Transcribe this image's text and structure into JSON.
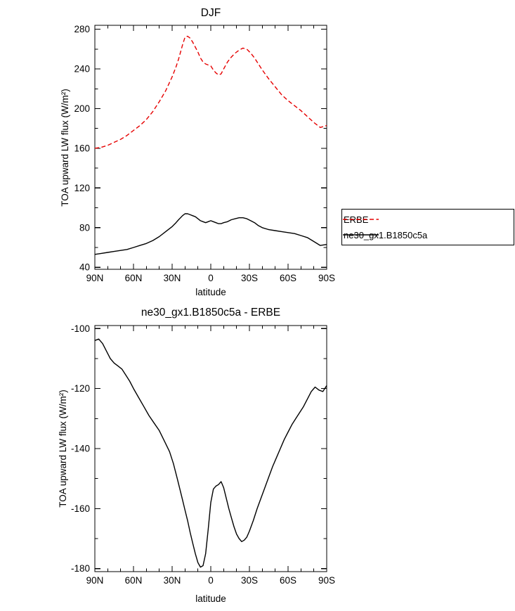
{
  "figure": {
    "background_color": "#ffffff",
    "frame_color": "#000000"
  },
  "legend": {
    "position": "right",
    "border": true,
    "entries": [
      "ERBE",
      "ne30_gx1.B1850c5a"
    ]
  },
  "chart_data": [
    {
      "type": "line",
      "title": "DJF",
      "xlabel": "latitude",
      "ylabel": "TOA upward LW flux (W/m²)",
      "xlim": [
        90,
        -90
      ],
      "ylim": [
        40,
        280
      ],
      "grid": false,
      "xticks": [
        90,
        60,
        30,
        0,
        -30,
        -60,
        -90
      ],
      "xticklabels": [
        "90N",
        "60N",
        "30N",
        "0",
        "30S",
        "60S",
        "90S"
      ],
      "yticks": [
        40,
        80,
        120,
        160,
        200,
        240,
        280
      ],
      "legend_position": "right-outside",
      "series": [
        {
          "name": "ERBE",
          "color": "#e60000",
          "line_style": "dashed",
          "x": [
            90,
            85,
            80,
            75,
            70,
            65,
            60,
            55,
            50,
            45,
            40,
            35,
            30,
            27,
            25,
            22,
            20,
            18,
            16,
            14,
            12,
            10,
            8,
            6,
            4,
            2,
            0,
            -2,
            -4,
            -6,
            -8,
            -10,
            -13,
            -16,
            -19,
            -22,
            -25,
            -28,
            -31,
            -34,
            -37,
            -40,
            -45,
            -50,
            -55,
            -60,
            -65,
            -70,
            -75,
            -80,
            -85,
            -90
          ],
          "y": [
            160,
            161,
            163,
            166,
            169,
            173,
            178,
            183,
            189,
            197,
            207,
            218,
            232,
            242,
            250,
            264,
            272,
            273,
            271,
            267,
            262,
            257,
            251,
            247,
            245,
            244,
            243,
            239,
            236,
            234,
            235,
            240,
            247,
            252,
            256,
            259,
            261,
            260,
            256,
            251,
            245,
            239,
            230,
            222,
            214,
            208,
            203,
            198,
            192,
            186,
            181,
            183
          ]
        },
        {
          "name": "ne30_gx1.B1850c5a",
          "color": "#000000",
          "line_style": "solid",
          "x": [
            90,
            85,
            80,
            75,
            70,
            65,
            60,
            55,
            50,
            45,
            40,
            35,
            30,
            27,
            25,
            22,
            20,
            18,
            16,
            14,
            12,
            10,
            8,
            6,
            4,
            2,
            0,
            -2,
            -4,
            -6,
            -8,
            -10,
            -13,
            -16,
            -19,
            -22,
            -25,
            -28,
            -31,
            -34,
            -37,
            -40,
            -45,
            -50,
            -55,
            -60,
            -65,
            -70,
            -75,
            -80,
            -85,
            -90
          ],
          "y": [
            53,
            54,
            55,
            56,
            57,
            58,
            60,
            62,
            64,
            67,
            71,
            76,
            81,
            85,
            88,
            92,
            94,
            94,
            93,
            92,
            91,
            89,
            87,
            86,
            85,
            86,
            87,
            86,
            85,
            84,
            84,
            85,
            86,
            88,
            89,
            90,
            90,
            89,
            87,
            85,
            82,
            80,
            78,
            77,
            76,
            75,
            74,
            72,
            70,
            66,
            62,
            63
          ]
        }
      ]
    },
    {
      "type": "line",
      "title": "ne30_gx1.B1850c5a - ERBE",
      "xlabel": "latitude",
      "ylabel": "TOA upward LW flux (W/m²)",
      "xlim": [
        90,
        -90
      ],
      "ylim": [
        -180,
        -100
      ],
      "grid": false,
      "xticks": [
        90,
        60,
        30,
        0,
        -30,
        -60,
        -90
      ],
      "xticklabels": [
        "90N",
        "60N",
        "30N",
        "0",
        "30S",
        "60S",
        "90S"
      ],
      "yticks": [
        -180,
        -160,
        -140,
        -120,
        -100
      ],
      "series": [
        {
          "name": "ne30_gx1.B1850c5a - ERBE",
          "color": "#000000",
          "line_style": "solid",
          "x": [
            90,
            87,
            84,
            81,
            78,
            75,
            72,
            69,
            66,
            63,
            60,
            56,
            52,
            48,
            44,
            40,
            36,
            32,
            29,
            26,
            24,
            22,
            20,
            18,
            16,
            14,
            12,
            10,
            8,
            6,
            4,
            2,
            0,
            -2,
            -4,
            -6,
            -8,
            -10,
            -12,
            -14,
            -16,
            -18,
            -20,
            -22,
            -24,
            -26,
            -28,
            -30,
            -33,
            -36,
            -39,
            -42,
            -45,
            -48,
            -51,
            -54,
            -57,
            -60,
            -63,
            -66,
            -69,
            -72,
            -75,
            -78,
            -81,
            -84,
            -87,
            -90
          ],
          "y": [
            -104,
            -103.5,
            -105,
            -107.5,
            -110,
            -111.5,
            -112.5,
            -113.5,
            -115.5,
            -117.5,
            -120,
            -123,
            -126,
            -129,
            -131.5,
            -134,
            -137.5,
            -141,
            -145,
            -150,
            -153.5,
            -157,
            -160.5,
            -164,
            -168,
            -171.5,
            -175,
            -178,
            -179.5,
            -179,
            -175,
            -167,
            -158,
            -153.5,
            -152.5,
            -152,
            -151,
            -153,
            -156.5,
            -160,
            -163,
            -166,
            -168.5,
            -170,
            -171,
            -170.5,
            -169.5,
            -167.5,
            -164,
            -160,
            -156.5,
            -153,
            -149.5,
            -146,
            -143,
            -140,
            -137,
            -134.5,
            -132,
            -130,
            -128,
            -126,
            -123.5,
            -121,
            -119.5,
            -120.5,
            -121,
            -119
          ]
        }
      ]
    }
  ]
}
